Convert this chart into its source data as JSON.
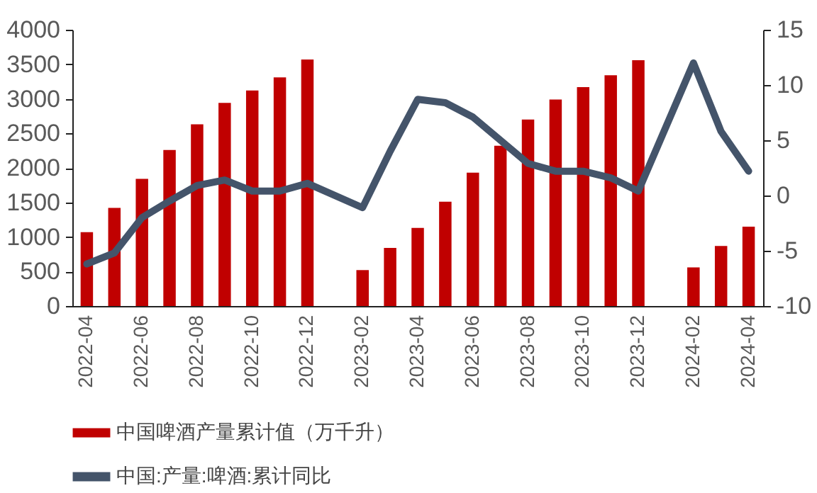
{
  "chart_data": {
    "type": "bar",
    "categories": [
      "2022-04",
      null,
      "2022-06",
      null,
      "2022-08",
      null,
      "2022-10",
      null,
      "2022-12",
      null,
      "2023-02",
      null,
      "2023-04",
      null,
      "2023-06",
      null,
      "2023-08",
      null,
      "2023-10",
      null,
      "2023-12",
      null,
      "2024-02",
      null,
      "2024-04"
    ],
    "series": [
      {
        "name": "中国啤酒产量累计值（万千升）",
        "color": "#c00000",
        "values": [
          1070,
          1420,
          1840,
          2260,
          2630,
          2940,
          3120,
          3310,
          3570,
          null,
          520,
          840,
          1130,
          1510,
          1930,
          2320,
          2700,
          2990,
          3170,
          3340,
          3560,
          null,
          560,
          870,
          1150
        ]
      },
      {
        "name": "中国:产量:啤酒:累计同比",
        "type": "line",
        "axis": "y2",
        "color": "#44546a",
        "values": [
          -6.2,
          -5.2,
          -2.0,
          -0.5,
          0.9,
          1.4,
          0.4,
          0.4,
          1.1,
          null,
          -1.1,
          4.0,
          8.7,
          8.4,
          7.1,
          5.0,
          2.9,
          2.2,
          2.2,
          1.6,
          0.4,
          null,
          12.0,
          5.8,
          2.2
        ]
      }
    ],
    "ylim": [
      0,
      4000
    ],
    "yticks": [
      0,
      500,
      1000,
      1500,
      2000,
      2500,
      3000,
      3500,
      4000
    ],
    "y2lim": [
      -10,
      15
    ],
    "y2ticks": [
      -10,
      -5,
      0,
      5,
      10,
      15
    ],
    "grid": false,
    "legend": "bottom",
    "line_style": "solid",
    "marker": "none"
  }
}
